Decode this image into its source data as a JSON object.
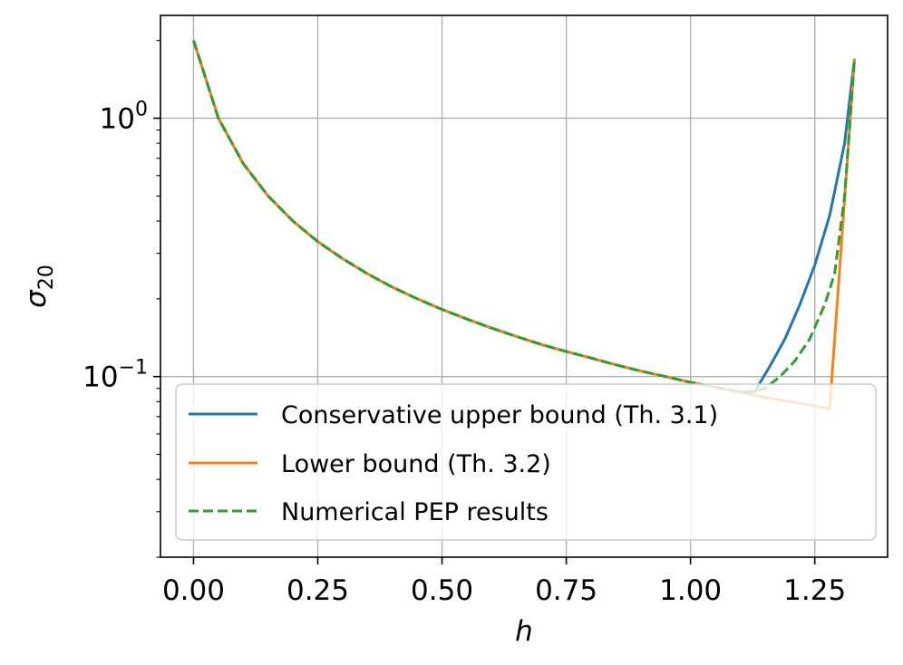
{
  "chart_data": {
    "type": "line",
    "title": "",
    "xlabel": "h",
    "ylabel": "σ20",
    "xlim": [
      -0.0665,
      1.3965
    ],
    "ylim": [
      0.02,
      2.5
    ],
    "yscale": "log",
    "grid": true,
    "legend_position": "lower-right",
    "x_ticks": [
      0.0,
      0.25,
      0.5,
      0.75,
      1.0,
      1.25
    ],
    "x_tick_labels": [
      "0.00",
      "0.25",
      "0.50",
      "0.75",
      "1.00",
      "1.25"
    ],
    "y_major_ticks": [
      {
        "value": 0.1,
        "base": "10",
        "exp": "−1"
      },
      {
        "value": 1.0,
        "base": "10",
        "exp": "0"
      }
    ],
    "series": [
      {
        "name": "Conservative upper bound (Th. 3.1)",
        "color": "#1f77b4",
        "dash": "solid",
        "x": [
          0.0,
          0.05,
          0.1,
          0.15,
          0.2,
          0.25,
          0.3,
          0.35,
          0.4,
          0.45,
          0.5,
          0.55,
          0.6,
          0.65,
          0.7,
          0.75,
          0.8,
          0.85,
          0.9,
          0.95,
          1.0,
          1.05,
          1.1,
          1.13,
          1.16,
          1.19,
          1.22,
          1.25,
          1.28,
          1.31,
          1.33
        ],
        "y": [
          2.0,
          1.0,
          0.667,
          0.5,
          0.4,
          0.333,
          0.286,
          0.25,
          0.222,
          0.2,
          0.182,
          0.167,
          0.154,
          0.143,
          0.133,
          0.125,
          0.118,
          0.111,
          0.105,
          0.1,
          0.095,
          0.091,
          0.087,
          0.088,
          0.11,
          0.14,
          0.19,
          0.27,
          0.42,
          0.8,
          1.7
        ]
      },
      {
        "name": "Lower bound (Th. 3.2)",
        "color": "#ff7f0e",
        "dash": "solid",
        "x": [
          0.0,
          0.05,
          0.1,
          0.15,
          0.2,
          0.25,
          0.3,
          0.35,
          0.4,
          0.45,
          0.5,
          0.55,
          0.6,
          0.65,
          0.7,
          0.75,
          0.8,
          0.85,
          0.9,
          0.95,
          1.0,
          1.05,
          1.1,
          1.15,
          1.2,
          1.25,
          1.28,
          1.3,
          1.33
        ],
        "y": [
          2.0,
          1.0,
          0.667,
          0.5,
          0.4,
          0.333,
          0.286,
          0.25,
          0.222,
          0.2,
          0.182,
          0.167,
          0.154,
          0.143,
          0.133,
          0.125,
          0.118,
          0.111,
          0.105,
          0.1,
          0.095,
          0.091,
          0.087,
          0.083,
          0.08,
          0.077,
          0.075,
          0.26,
          1.7
        ]
      },
      {
        "name": "Numerical PEP results",
        "color": "#2ca02c",
        "dash": "dashed",
        "x": [
          0.0,
          0.05,
          0.1,
          0.15,
          0.2,
          0.25,
          0.3,
          0.35,
          0.4,
          0.45,
          0.5,
          0.55,
          0.6,
          0.65,
          0.7,
          0.75,
          0.8,
          0.85,
          0.9,
          0.95,
          1.0,
          1.05,
          1.1,
          1.12,
          1.15,
          1.18,
          1.21,
          1.24,
          1.27,
          1.29,
          1.31,
          1.33
        ],
        "y": [
          2.0,
          1.0,
          0.667,
          0.5,
          0.4,
          0.333,
          0.286,
          0.25,
          0.222,
          0.2,
          0.182,
          0.167,
          0.154,
          0.143,
          0.133,
          0.125,
          0.118,
          0.111,
          0.105,
          0.1,
          0.095,
          0.091,
          0.087,
          0.087,
          0.09,
          0.1,
          0.115,
          0.14,
          0.19,
          0.25,
          0.5,
          1.7
        ]
      }
    ]
  }
}
